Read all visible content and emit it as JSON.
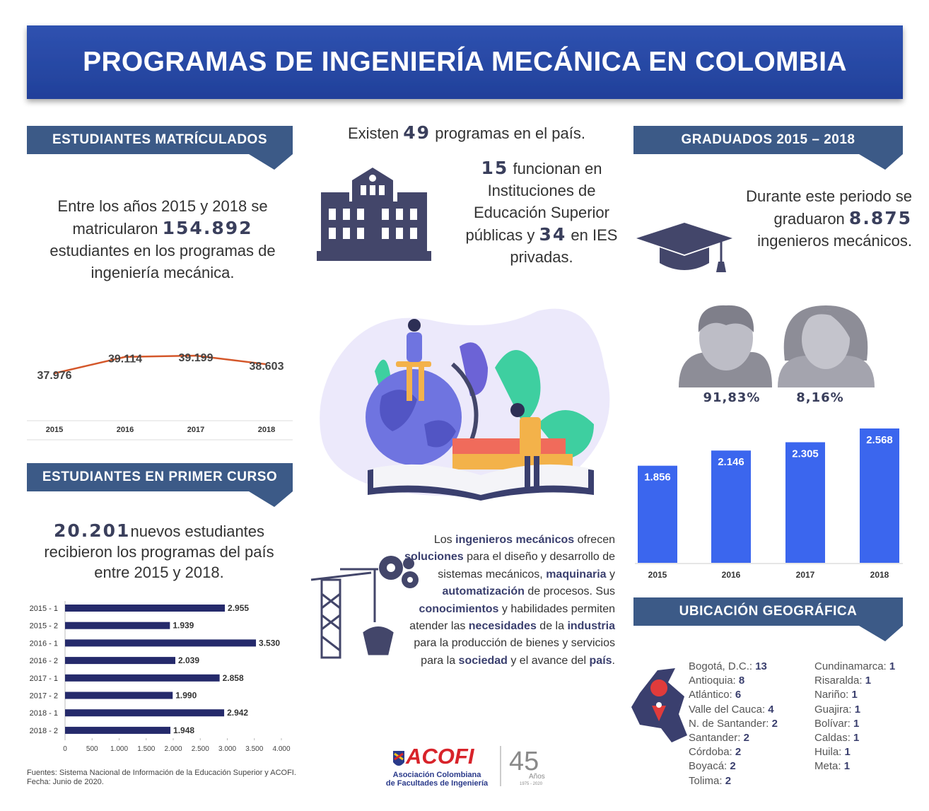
{
  "header": {
    "title": "PROGRAMAS DE INGENIERÍA MECÁNICA EN COLOMBIA"
  },
  "enrolled": {
    "heading": "ESTUDIANTES MATRÍCULADOS",
    "text": [
      "Entre los años 2015 y 2018 se matricularon",
      "154.892",
      "estudiantes en los programas de ingeniería mecánica."
    ]
  },
  "programs": {
    "intro": [
      "Existen",
      "49",
      "programas en el país."
    ],
    "detail": [
      "15",
      "funcionan en Instituciones de Educación Superior públicas y",
      "34",
      "en IES privadas."
    ]
  },
  "graduates": {
    "heading": "GRADUADOS 2015 – 2018",
    "text": [
      "Durante este periodo se graduaron",
      "8.875",
      "ingenieros mecánicos."
    ],
    "gender": [
      "91,83%",
      "8,16%"
    ]
  },
  "first_year": {
    "heading": "ESTUDIANTES EN PRIMER CURSO",
    "text": [
      "20.201",
      "nuevos estudiantes recibieron los programas del país entre 2015 y 2018."
    ]
  },
  "description": {
    "segments": [
      "Los ",
      "ingenieros mecánicos",
      " ofrecen ",
      "soluciones",
      " para el diseño y desarrollo de sistemas mecánicos, ",
      "maquinaria",
      " y ",
      "automatización",
      " de procesos. Sus ",
      "conocimientos",
      " y habilidades permiten atender las ",
      "necesidades",
      " de la ",
      "industria",
      " para la producción de bienes y servicios para la ",
      "sociedad",
      " y el avance del ",
      "país",
      "."
    ]
  },
  "location": {
    "heading": "UBICACIÓN GEOGRÁFICA",
    "columns": [
      [
        {
          "name": "Bogotá, D.C.:",
          "count": "13"
        },
        {
          "name": "Antioquia:",
          "count": "8"
        },
        {
          "name": "Atlántico:",
          "count": "6"
        },
        {
          "name": "Valle del Cauca:",
          "count": "4"
        },
        {
          "name": "N. de Santander:",
          "count": "2"
        },
        {
          "name": "Santander:",
          "count": "2"
        },
        {
          "name": "Córdoba:",
          "count": "2"
        },
        {
          "name": "Boyacá:",
          "count": "2"
        },
        {
          "name": "Tolima:",
          "count": "2"
        }
      ],
      [
        {
          "name": "Cundinamarca:",
          "count": "1"
        },
        {
          "name": "Risaralda:",
          "count": "1"
        },
        {
          "name": "Nariño:",
          "count": "1"
        },
        {
          "name": "Guajira:",
          "count": "1"
        },
        {
          "name": "Bolívar:",
          "count": "1"
        },
        {
          "name": "Caldas:",
          "count": "1"
        },
        {
          "name": "Huila:",
          "count": "1"
        },
        {
          "name": "Meta:",
          "count": "1"
        }
      ]
    ]
  },
  "footer": {
    "sources": "Fuentes: Sistema Nacional de Información de la Educación Superior y ACOFI.",
    "date": "Fecha: Junio de 2020.",
    "logo": "ACOFI",
    "org": [
      "Asociación Colombiana",
      "de Facultades de Ingeniería"
    ],
    "anniversary": "45",
    "anniversary_label": "Años",
    "years": "1975 - 2020"
  },
  "chart_data": [
    {
      "type": "line",
      "categories": [
        "2015",
        "2016",
        "2017",
        "2018"
      ],
      "values": [
        37976,
        39114,
        39199,
        38603
      ],
      "value_labels": [
        "37.976",
        "39.114",
        "39.199",
        "38.603"
      ],
      "color": "#d4572a"
    },
    {
      "type": "hbar",
      "categories": [
        "2015 - 1",
        "2015 - 2",
        "2016 - 1",
        "2016 - 2",
        "2017 - 1",
        "2017 - 2",
        "2018 - 1",
        "2018 - 2"
      ],
      "values": [
        2955,
        1939,
        3530,
        2039,
        2858,
        1990,
        2942,
        1948
      ],
      "value_labels": [
        "2.955",
        "1.939",
        "3.530",
        "2.039",
        "2.858",
        "1.990",
        "2.942",
        "1.948"
      ],
      "color": "#252a6b",
      "xlim": [
        0,
        4000
      ],
      "xticks": [
        0,
        500,
        {
          "value": 1000,
          "label": "1.000"
        },
        {
          "value": 1500,
          "label": "1.500"
        },
        {
          "value": 2000,
          "label": "2.000"
        },
        {
          "value": 2500,
          "label": "2.500"
        },
        {
          "value": 3000,
          "label": "3.000"
        },
        {
          "value": 3500,
          "label": "3.500"
        },
        {
          "value": 4000,
          "label": "4.000"
        }
      ]
    },
    {
      "type": "bar",
      "categories": [
        "2015",
        "2016",
        "2017",
        "2018"
      ],
      "values": [
        1856,
        2146,
        2305,
        2568
      ],
      "value_labels": [
        "1.856",
        "2.146",
        "2.305",
        "2.568"
      ],
      "color": "#3b66ee"
    }
  ]
}
